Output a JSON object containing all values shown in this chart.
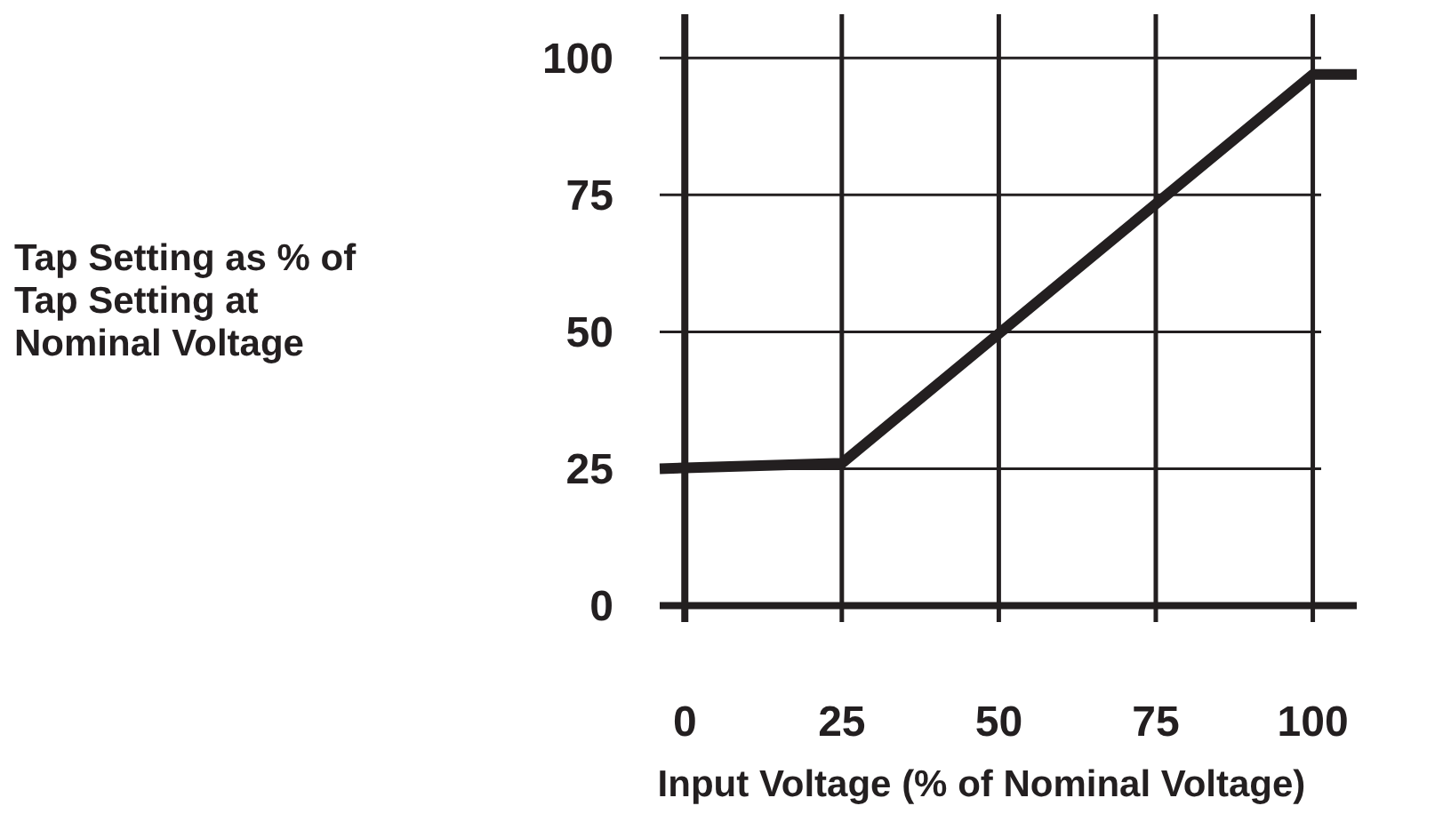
{
  "chart_data": {
    "type": "line",
    "xlabel": "Input Voltage (% of Nominal Voltage)",
    "ylabel": "Tap Setting as % of Tap Setting at Nominal Voltage",
    "x": [
      -4,
      25,
      100,
      107
    ],
    "values": [
      25,
      26,
      97,
      97
    ],
    "color": "#231f20",
    "xlim": [
      -4,
      107
    ],
    "ylim": [
      -3,
      108
    ],
    "xticks": [
      0,
      25,
      50,
      75,
      100
    ],
    "yticks": [
      0,
      25,
      50,
      75,
      100
    ],
    "grid": true,
    "marker": "none",
    "line_style": "solid"
  }
}
